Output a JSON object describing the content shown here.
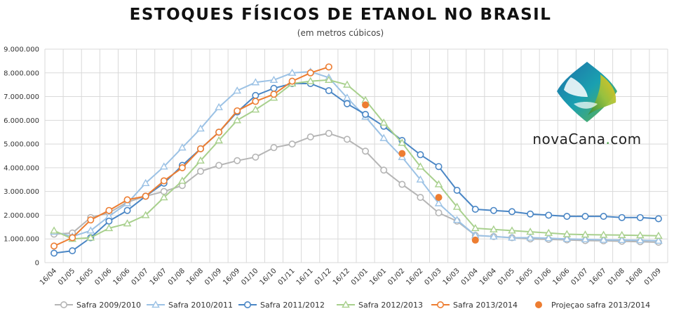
{
  "title": "ESTOQUES FÍSICOS DE ETANOL NO BRASIL",
  "subtitle": "(em metros cúbicos)",
  "logo": {
    "name": "novaCana",
    "dot": ".",
    "suffix": "com"
  },
  "chart_data": {
    "type": "line",
    "categories": [
      "16/04",
      "01/05",
      "16/05",
      "01/06",
      "16/06",
      "01/07",
      "16/07",
      "01/08",
      "16/08",
      "01/09",
      "16/09",
      "01/10",
      "16/10",
      "01/11",
      "16/11",
      "01/12",
      "16/12",
      "01/01",
      "16/01",
      "01/02",
      "16/02",
      "01/03",
      "16/03",
      "01/04",
      "16/04",
      "01/05",
      "16/05",
      "01/06",
      "16/06",
      "01/07",
      "16/07",
      "01/08",
      "16/08",
      "01/09"
    ],
    "ylim": [
      0,
      9000000
    ],
    "yticks": [
      0,
      1000000,
      2000000,
      3000000,
      4000000,
      5000000,
      6000000,
      7000000,
      8000000,
      9000000
    ],
    "ytick_labels": [
      "0",
      "1.000.000",
      "2.000.000",
      "3.000.000",
      "4.000.000",
      "5.000.000",
      "6.000.000",
      "7.000.000",
      "8.000.000",
      "9.000.000"
    ],
    "grid": true,
    "legend_position": "bottom",
    "series": [
      {
        "name": "Safra 2009/2010",
        "color": "#b5b5b5",
        "marker": "circle",
        "values": [
          1200000,
          1250000,
          1900000,
          2100000,
          2550000,
          2800000,
          3000000,
          3250000,
          3850000,
          4100000,
          4300000,
          4450000,
          4850000,
          5000000,
          5300000,
          5450000,
          5200000,
          4700000,
          3900000,
          3300000,
          2750000,
          2100000,
          1750000,
          1150000,
          1100000,
          1050000,
          1000000,
          980000,
          960000,
          930000,
          920000,
          900000,
          880000,
          860000
        ]
      },
      {
        "name": "Safra 2010/2011",
        "color": "#9cc2e5",
        "marker": "triangle",
        "values": [
          1300000,
          1100000,
          1350000,
          1950000,
          2500000,
          3350000,
          4050000,
          4850000,
          5650000,
          6550000,
          7250000,
          7600000,
          7700000,
          8000000,
          8050000,
          7800000,
          6950000,
          6150000,
          5250000,
          4450000,
          3500000,
          2500000,
          1800000,
          1150000,
          1100000,
          1050000,
          1050000,
          1030000,
          1000000,
          980000,
          960000,
          950000,
          940000,
          920000
        ]
      },
      {
        "name": "Safra 2011/2012",
        "color": "#4a86c5",
        "marker": "circle",
        "values": [
          400000,
          500000,
          1050000,
          1750000,
          2200000,
          2800000,
          3350000,
          4100000,
          4800000,
          5500000,
          6350000,
          7050000,
          7350000,
          7550000,
          7550000,
          7250000,
          6700000,
          6250000,
          5750000,
          5150000,
          4550000,
          4050000,
          3050000,
          2250000,
          2200000,
          2150000,
          2050000,
          2000000,
          1950000,
          1950000,
          1950000,
          1900000,
          1900000,
          1850000
        ]
      },
      {
        "name": "Safra 2012/2013",
        "color": "#a8d08d",
        "marker": "triangle",
        "values": [
          1350000,
          1000000,
          1050000,
          1450000,
          1650000,
          2000000,
          2750000,
          3450000,
          4300000,
          5150000,
          6000000,
          6450000,
          6950000,
          7550000,
          7650000,
          7700000,
          7500000,
          6850000,
          5900000,
          5050000,
          4050000,
          3300000,
          2350000,
          1450000,
          1400000,
          1350000,
          1300000,
          1250000,
          1200000,
          1180000,
          1170000,
          1160000,
          1150000,
          1130000
        ]
      },
      {
        "name": "Safra 2013/2014",
        "color": "#ed7d31",
        "marker": "circle",
        "values": [
          700000,
          1050000,
          1800000,
          2200000,
          2650000,
          2800000,
          3450000,
          4000000,
          4800000,
          5500000,
          6400000,
          6800000,
          7100000,
          7650000,
          8000000,
          8250000,
          null,
          null,
          null,
          null,
          null,
          null,
          null,
          null,
          null,
          null,
          null,
          null,
          null,
          null,
          null,
          null,
          null,
          null
        ]
      },
      {
        "name": "Projeçao safra 2013/2014",
        "color": "#ed7d31",
        "marker": "dot",
        "values": [
          null,
          null,
          null,
          null,
          null,
          null,
          null,
          null,
          null,
          null,
          null,
          null,
          null,
          null,
          null,
          null,
          null,
          6650000,
          null,
          4600000,
          null,
          2750000,
          null,
          950000,
          null,
          null,
          null,
          null,
          null,
          null,
          null,
          null,
          null,
          null
        ]
      }
    ]
  }
}
